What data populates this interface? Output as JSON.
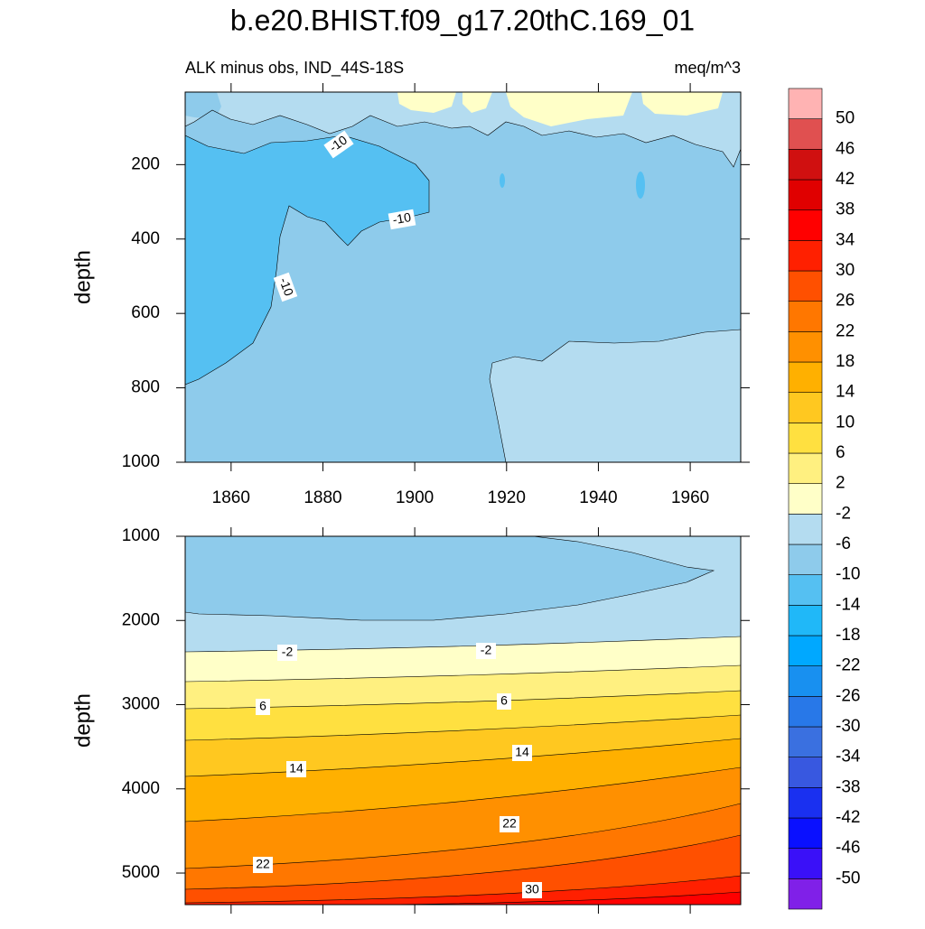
{
  "title": "b.e20.BHIST.f09_g17.20thC.169_01",
  "chart_data": [
    {
      "type": "contour",
      "subtitle_left": "ALK minus obs, IND_44S-18S",
      "subtitle_right": "meq/m^3",
      "ylabel": "depth",
      "xlim": [
        1850,
        1971
      ],
      "xticks": [
        1860,
        1880,
        1900,
        1920,
        1940,
        1960
      ],
      "xtick_labels": true,
      "ylim": [
        5,
        1000
      ],
      "yticks": [
        200,
        400,
        600,
        800,
        1000
      ],
      "y_reversed": true,
      "contour_labels": [
        -10,
        -10,
        -10
      ]
    },
    {
      "type": "contour",
      "ylabel": "depth",
      "xlim": [
        1850,
        1971
      ],
      "xticks": [
        1860,
        1880,
        1900,
        1920,
        1940,
        1960
      ],
      "xtick_labels": false,
      "ylim": [
        1000,
        5375
      ],
      "yticks": [
        1000,
        2000,
        3000,
        4000,
        5000
      ],
      "y_reversed": true,
      "contour_labels": [
        -2,
        -2,
        6,
        6,
        14,
        14,
        22,
        22,
        30
      ]
    }
  ],
  "colorbar": {
    "levels": [
      -50,
      -46,
      -42,
      -38,
      -34,
      -30,
      -26,
      -22,
      -18,
      -14,
      -10,
      -6,
      -2,
      2,
      6,
      10,
      14,
      18,
      22,
      26,
      30,
      34,
      38,
      42,
      46,
      50
    ],
    "colors": [
      "#8020e8",
      "#3a10f8",
      "#0a10ff",
      "#1a30f0",
      "#3858e0",
      "#3a70e0",
      "#2878e8",
      "#1890f0",
      "#00a8ff",
      "#20b8f8",
      "#55c0f2",
      "#8ecbeb",
      "#b4dcf0",
      "#ffffc8",
      "#fff080",
      "#ffe040",
      "#ffc820",
      "#ffb000",
      "#ff9000",
      "#ff7700",
      "#ff5000",
      "#ff2000",
      "#ff0000",
      "#e00000",
      "#d01010",
      "#e05050",
      "#ffb3b3"
    ]
  }
}
